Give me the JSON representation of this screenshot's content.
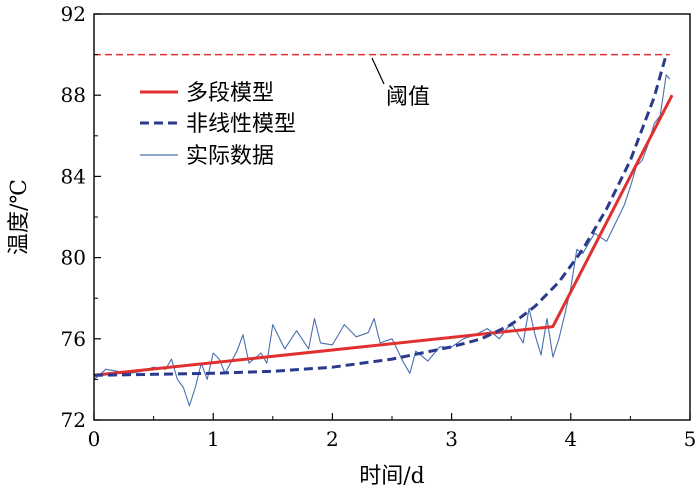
{
  "chart_data": {
    "type": "line",
    "xlabel": "时间/d",
    "ylabel": "温度/℃",
    "xlim": [
      0,
      5
    ],
    "ylim": [
      72,
      92
    ],
    "x_ticks": [
      0,
      1,
      2,
      3,
      4,
      5
    ],
    "y_ticks": [
      72,
      76,
      80,
      84,
      88,
      92
    ],
    "grid": false,
    "legend_position": "top-left",
    "threshold": {
      "value": 90,
      "label": "阈值",
      "color": "#e03030"
    },
    "series": [
      {
        "name": "多段模型",
        "style": "solid",
        "color": "#e03030",
        "x": [
          0,
          3.85,
          4.85
        ],
        "y": [
          74.2,
          76.6,
          88.0
        ]
      },
      {
        "name": "非线性模型",
        "style": "dashed",
        "color": "#2a3a8c",
        "x": [
          0,
          0.5,
          1.0,
          1.5,
          2.0,
          2.5,
          3.0,
          3.25,
          3.5,
          3.7,
          3.9,
          4.1,
          4.3,
          4.5,
          4.7,
          4.8
        ],
        "y": [
          74.2,
          74.25,
          74.3,
          74.4,
          74.6,
          75.0,
          75.6,
          76.0,
          76.7,
          77.6,
          78.8,
          80.4,
          82.4,
          84.8,
          87.9,
          90.0
        ]
      },
      {
        "name": "实际数据",
        "style": "thin",
        "color": "#4a6fb0",
        "x": [
          0,
          0.1,
          0.2,
          0.3,
          0.4,
          0.5,
          0.6,
          0.65,
          0.7,
          0.75,
          0.8,
          0.85,
          0.9,
          0.95,
          1.0,
          1.05,
          1.1,
          1.2,
          1.25,
          1.3,
          1.4,
          1.45,
          1.5,
          1.6,
          1.7,
          1.8,
          1.85,
          1.9,
          2.0,
          2.1,
          2.2,
          2.3,
          2.35,
          2.4,
          2.5,
          2.6,
          2.65,
          2.7,
          2.8,
          2.9,
          3.0,
          3.1,
          3.2,
          3.3,
          3.4,
          3.5,
          3.6,
          3.65,
          3.7,
          3.75,
          3.8,
          3.85,
          3.9,
          3.95,
          4.0,
          4.05,
          4.1,
          4.2,
          4.3,
          4.4,
          4.45,
          4.5,
          4.55,
          4.6,
          4.65,
          4.7,
          4.75,
          4.8,
          4.83
        ],
        "y": [
          74.0,
          74.5,
          74.4,
          74.3,
          74.4,
          74.6,
          74.5,
          75.0,
          74.0,
          73.6,
          72.7,
          73.6,
          74.8,
          74.0,
          75.3,
          75.0,
          74.3,
          75.4,
          76.2,
          74.8,
          75.3,
          74.8,
          76.7,
          75.5,
          76.4,
          75.5,
          77.0,
          75.8,
          75.7,
          76.7,
          76.1,
          76.3,
          77.0,
          75.8,
          76.0,
          74.8,
          74.3,
          75.4,
          74.9,
          75.6,
          75.6,
          76.0,
          76.2,
          76.5,
          76.0,
          76.8,
          75.8,
          77.5,
          76.2,
          75.2,
          77.0,
          75.1,
          76.0,
          77.2,
          78.5,
          80.4,
          80.2,
          81.2,
          80.8,
          82.0,
          82.6,
          83.5,
          84.5,
          84.8,
          85.6,
          86.6,
          87.0,
          89.0,
          88.8
        ]
      }
    ]
  }
}
